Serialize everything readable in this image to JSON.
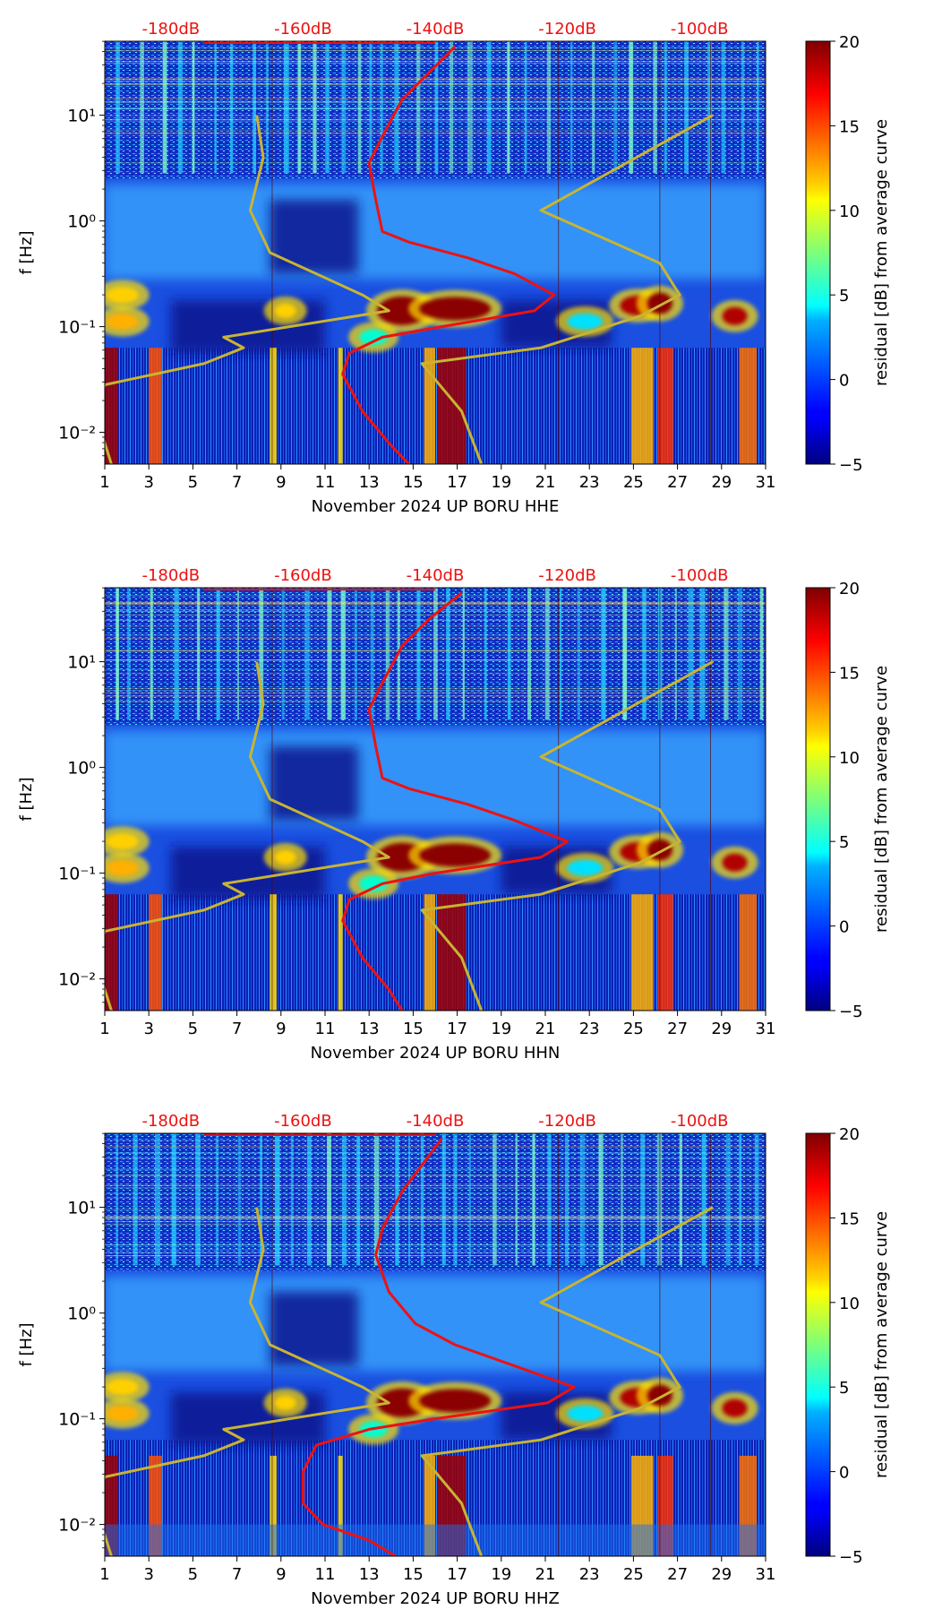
{
  "chart_data": [
    {
      "type": "heatmap",
      "title": "",
      "xlabel": "November 2024 UP BORU  HHE",
      "ylabel": "f [Hz]",
      "x_ticks": [
        "1",
        "3",
        "5",
        "7",
        "9",
        "11",
        "13",
        "15",
        "17",
        "19",
        "21",
        "23",
        "25",
        "27",
        "29",
        "31"
      ],
      "x_range": [
        1,
        31
      ],
      "y_ticks": [
        "10⁻²",
        "10⁻¹",
        "10⁰",
        "10¹"
      ],
      "y_range_log10": [
        -2.3,
        1.7
      ],
      "top_axis_labels": [
        "-180dB",
        "-160dB",
        "-140dB",
        "-120dB",
        "-100dB"
      ],
      "colorbar": {
        "label": "residual [dB] from average curve",
        "range": [
          -5,
          20
        ],
        "ticks": [
          "20",
          "15",
          "10",
          "5",
          "0",
          "−5"
        ]
      },
      "series": [
        {
          "name": "average PSD curve",
          "color": "#ee1111",
          "points": [
            [
              -137,
              1.65
            ],
            [
              -141,
              1.4
            ],
            [
              -145,
              1.15
            ],
            [
              -148,
              0.8
            ],
            [
              -150,
              0.55
            ],
            [
              -149,
              0.2
            ],
            [
              -148,
              -0.1
            ],
            [
              -144,
              -0.2
            ],
            [
              -135,
              -0.35
            ],
            [
              -128,
              -0.5
            ],
            [
              -122,
              -0.7
            ],
            [
              -125,
              -0.85
            ],
            [
              -139,
              -1.0
            ],
            [
              -148,
              -1.1
            ],
            [
              -153,
              -1.25
            ],
            [
              -154,
              -1.45
            ],
            [
              -151,
              -1.8
            ],
            [
              -147,
              -2.1
            ],
            [
              -144,
              -2.3
            ]
          ]
        },
        {
          "name": "noise model curve",
          "color": "#c8b432",
          "points": [
            [
              -167,
              1.0
            ],
            [
              -166,
              0.6
            ],
            [
              -168,
              0.1
            ],
            [
              -165,
              -0.3
            ],
            [
              -151,
              -0.7
            ],
            [
              -147,
              -0.85
            ],
            [
              -172,
              -1.1
            ],
            [
              -169,
              -1.2
            ],
            [
              -175,
              -1.35
            ],
            [
              -190,
              -1.55
            ],
            [
              -191,
              -1.75
            ],
            [
              -191,
              -1.9
            ],
            [
              -190,
              -2.1
            ],
            [
              -189,
              -2.3
            ]
          ]
        },
        {
          "name": "noise model curve 2",
          "color": "#c8b432",
          "points": [
            [
              -98,
              1.0
            ],
            [
              -111,
              0.55
            ],
            [
              -124,
              0.1
            ],
            [
              -106,
              -0.4
            ],
            [
              -103,
              -0.7
            ],
            [
              -109,
              -0.9
            ],
            [
              -124,
              -1.2
            ],
            [
              -142,
              -1.35
            ],
            [
              -136,
              -1.8
            ],
            [
              -133,
              -2.3
            ]
          ]
        }
      ]
    },
    {
      "type": "heatmap",
      "title": "",
      "xlabel": "November 2024 UP BORU  HHN",
      "ylabel": "f [Hz]",
      "x_ticks": [
        "1",
        "3",
        "5",
        "7",
        "9",
        "11",
        "13",
        "15",
        "17",
        "19",
        "21",
        "23",
        "25",
        "27",
        "29",
        "31"
      ],
      "x_range": [
        1,
        31
      ],
      "y_ticks": [
        "10⁻²",
        "10⁻¹",
        "10⁰",
        "10¹"
      ],
      "y_range_log10": [
        -2.3,
        1.7
      ],
      "top_axis_labels": [
        "-180dB",
        "-160dB",
        "-140dB",
        "-120dB",
        "-100dB"
      ],
      "colorbar": {
        "label": "residual [dB] from average curve",
        "range": [
          -5,
          20
        ],
        "ticks": [
          "20",
          "15",
          "10",
          "5",
          "0",
          "−5"
        ]
      },
      "series": [
        {
          "name": "average PSD curve",
          "color": "#ee1111",
          "points": [
            [
              -136,
              1.65
            ],
            [
              -141,
              1.4
            ],
            [
              -145,
              1.15
            ],
            [
              -148,
              0.8
            ],
            [
              -150,
              0.55
            ],
            [
              -149,
              0.2
            ],
            [
              -148,
              -0.1
            ],
            [
              -144,
              -0.2
            ],
            [
              -135,
              -0.35
            ],
            [
              -128,
              -0.5
            ],
            [
              -120,
              -0.7
            ],
            [
              -124,
              -0.85
            ],
            [
              -140,
              -1.0
            ],
            [
              -148,
              -1.1
            ],
            [
              -153,
              -1.25
            ],
            [
              -154,
              -1.45
            ],
            [
              -151,
              -1.8
            ],
            [
              -147,
              -2.1
            ],
            [
              -145,
              -2.3
            ]
          ]
        },
        {
          "name": "noise model curve",
          "color": "#c8b432",
          "points": [
            [
              -167,
              1.0
            ],
            [
              -166,
              0.6
            ],
            [
              -168,
              0.1
            ],
            [
              -165,
              -0.3
            ],
            [
              -151,
              -0.7
            ],
            [
              -147,
              -0.85
            ],
            [
              -172,
              -1.1
            ],
            [
              -169,
              -1.2
            ],
            [
              -175,
              -1.35
            ],
            [
              -190,
              -1.55
            ],
            [
              -191,
              -1.75
            ],
            [
              -191,
              -1.9
            ],
            [
              -190,
              -2.1
            ],
            [
              -189,
              -2.3
            ]
          ]
        },
        {
          "name": "noise model curve 2",
          "color": "#c8b432",
          "points": [
            [
              -98,
              1.0
            ],
            [
              -111,
              0.55
            ],
            [
              -124,
              0.1
            ],
            [
              -106,
              -0.4
            ],
            [
              -103,
              -0.7
            ],
            [
              -109,
              -0.9
            ],
            [
              -124,
              -1.2
            ],
            [
              -142,
              -1.35
            ],
            [
              -136,
              -1.8
            ],
            [
              -133,
              -2.3
            ]
          ]
        }
      ]
    },
    {
      "type": "heatmap",
      "title": "",
      "xlabel": "November 2024 UP BORU  HHZ",
      "ylabel": "f [Hz]",
      "x_ticks": [
        "1",
        "3",
        "5",
        "7",
        "9",
        "11",
        "13",
        "15",
        "17",
        "19",
        "21",
        "23",
        "25",
        "27",
        "29",
        "31"
      ],
      "x_range": [
        1,
        31
      ],
      "y_ticks": [
        "10⁻²",
        "10⁻¹",
        "10⁰",
        "10¹"
      ],
      "y_range_log10": [
        -2.3,
        1.7
      ],
      "top_axis_labels": [
        "-180dB",
        "-160dB",
        "-140dB",
        "-120dB",
        "-100dB"
      ],
      "colorbar": {
        "label": "residual [dB] from average curve",
        "range": [
          -5,
          20
        ],
        "ticks": [
          "20",
          "15",
          "10",
          "5",
          "0",
          "−5"
        ]
      },
      "series": [
        {
          "name": "average PSD curve",
          "color": "#ee1111",
          "points": [
            [
              -139,
              1.65
            ],
            [
              -142,
              1.4
            ],
            [
              -145,
              1.15
            ],
            [
              -148,
              0.8
            ],
            [
              -149,
              0.55
            ],
            [
              -147,
              0.2
            ],
            [
              -143,
              -0.1
            ],
            [
              -137,
              -0.3
            ],
            [
              -128,
              -0.5
            ],
            [
              -119,
              -0.7
            ],
            [
              -123,
              -0.85
            ],
            [
              -140,
              -1.0
            ],
            [
              -150,
              -1.1
            ],
            [
              -158,
              -1.25
            ],
            [
              -160,
              -1.5
            ],
            [
              -160,
              -1.8
            ],
            [
              -157,
              -2.0
            ],
            [
              -150,
              -2.15
            ],
            [
              -146,
              -2.3
            ]
          ]
        },
        {
          "name": "noise model curve",
          "color": "#c8b432",
          "points": [
            [
              -167,
              1.0
            ],
            [
              -166,
              0.6
            ],
            [
              -168,
              0.1
            ],
            [
              -165,
              -0.3
            ],
            [
              -151,
              -0.7
            ],
            [
              -147,
              -0.85
            ],
            [
              -172,
              -1.1
            ],
            [
              -169,
              -1.2
            ],
            [
              -175,
              -1.35
            ],
            [
              -190,
              -1.55
            ],
            [
              -191,
              -1.75
            ],
            [
              -191,
              -1.9
            ],
            [
              -190,
              -2.1
            ],
            [
              -189,
              -2.3
            ]
          ]
        },
        {
          "name": "noise model curve 2",
          "color": "#c8b432",
          "points": [
            [
              -98,
              1.0
            ],
            [
              -111,
              0.55
            ],
            [
              -124,
              0.1
            ],
            [
              -106,
              -0.4
            ],
            [
              -103,
              -0.7
            ],
            [
              -109,
              -0.9
            ],
            [
              -124,
              -1.2
            ],
            [
              -142,
              -1.35
            ],
            [
              -136,
              -1.8
            ],
            [
              -133,
              -2.3
            ]
          ]
        }
      ]
    }
  ]
}
